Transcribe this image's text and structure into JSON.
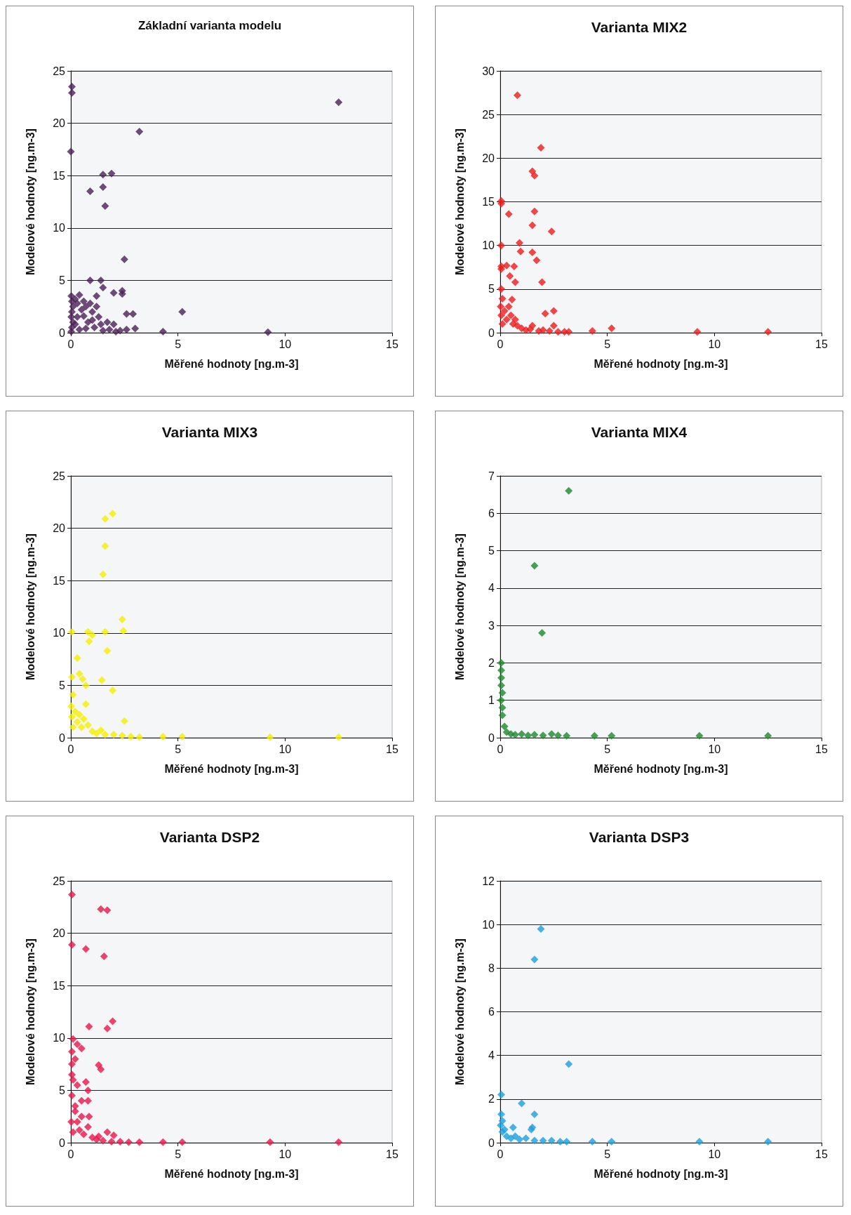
{
  "chart_data": [
    {
      "type": "scatter",
      "title": "Základní varianta modelu",
      "xlabel": "Měřené hodnoty [ng.m-3]",
      "ylabel": "Modelové hodnoty [ng.m-3]",
      "color": "#4b2056",
      "marker": "diamond",
      "grid": "y",
      "xlim": [
        0,
        15
      ],
      "xticks": [
        0,
        5,
        10,
        15
      ],
      "ylim": [
        0,
        25
      ],
      "yticks": [
        0,
        5,
        10,
        15,
        20,
        25
      ],
      "x": [
        0.05,
        0.05,
        12.5,
        0,
        3.2,
        1.5,
        1.9,
        0.9,
        1.5,
        1.6,
        2.5,
        0.9,
        1.4,
        5.2,
        4.3,
        9.2,
        2.4,
        2.4,
        1.5,
        2.0,
        1.2,
        2.6,
        2.9,
        3.0,
        2.6,
        0.02,
        0.05,
        0.1,
        0.05,
        0.02,
        0.1,
        0.05,
        0.02,
        0.2,
        0.3,
        0.4,
        0.5,
        0.3,
        0.2,
        0.4,
        0.6,
        0.7,
        0.6,
        0.8,
        0.7,
        0.9,
        1.0,
        1.0,
        1.1,
        1.2,
        1.3,
        1.4,
        1.5,
        1.7,
        1.8,
        2.0,
        2.1,
        2.3
      ],
      "values": [
        23.5,
        22.9,
        22,
        17.3,
        19.2,
        15.1,
        15.2,
        13.5,
        13.9,
        12.1,
        7.0,
        5.0,
        5.0,
        2.0,
        0.1,
        0.05,
        4.0,
        3.7,
        4.3,
        3.8,
        3.5,
        1.8,
        1.8,
        0.4,
        0.3,
        3.5,
        3.0,
        2.5,
        2.0,
        1.5,
        1.0,
        0.5,
        0.1,
        3.2,
        2.8,
        3.6,
        2.2,
        1.5,
        0.8,
        0.3,
        3.0,
        2.5,
        1.6,
        1.0,
        0.4,
        2.8,
        2.0,
        1.2,
        0.5,
        2.5,
        1.5,
        0.8,
        0.2,
        1.0,
        0.3,
        0.8,
        0.1,
        0.2
      ]
    },
    {
      "type": "scatter",
      "title": "Varianta MIX2",
      "xlabel": "Měřené hodnoty [ng.m-3]",
      "ylabel": "Modelové hodnoty [ng.m-3]",
      "color": "#ee1c1c",
      "marker": "diamond",
      "grid": "y",
      "xlim": [
        0,
        15
      ],
      "xticks": [
        0,
        5,
        10,
        15
      ],
      "ylim": [
        0,
        30
      ],
      "yticks": [
        0,
        5,
        10,
        15,
        20,
        25,
        30
      ],
      "x": [
        0.8,
        1.9,
        1.5,
        1.6,
        0.05,
        0.05,
        0.4,
        1.6,
        1.5,
        2.4,
        0.9,
        0.95,
        1.5,
        1.7,
        0.05,
        0.05,
        0.3,
        0.65,
        0.05,
        0.45,
        0.7,
        1.95,
        0.05,
        0.1,
        0.55,
        2.1,
        2.5,
        4.3,
        5.2,
        9.2,
        12.5,
        1.5,
        2.5,
        0.02,
        0.05,
        0.1,
        0.2,
        0.3,
        0.4,
        0.5,
        0.6,
        0.7,
        0.8,
        1.0,
        1.2,
        1.4,
        1.8,
        2.0,
        2.3,
        2.7,
        3.0,
        3.2
      ],
      "values": [
        27.2,
        21.2,
        18.5,
        18.0,
        15.1,
        14.8,
        13.6,
        13.9,
        12.3,
        11.6,
        10.3,
        9.3,
        9.2,
        8.3,
        10.0,
        7.6,
        7.7,
        7.6,
        7.3,
        6.5,
        5.8,
        5.8,
        5.0,
        3.9,
        3.8,
        2.2,
        2.5,
        0.2,
        0.5,
        0.1,
        0.1,
        0.8,
        0.8,
        3.0,
        2.0,
        1.0,
        2.5,
        1.5,
        3.0,
        2.0,
        1.0,
        1.5,
        0.8,
        0.5,
        0.3,
        0.4,
        0.2,
        0.3,
        0.2,
        0.1,
        0.1,
        0.1
      ]
    },
    {
      "type": "scatter",
      "title": "Varianta MIX3",
      "xlabel": "Měřené hodnoty [ng.m-3]",
      "ylabel": "Modelové hodnoty [ng.m-3]",
      "color": "#f5f000",
      "marker": "diamond",
      "grid": "y",
      "xlim": [
        0,
        15
      ],
      "xticks": [
        0,
        5,
        10,
        15
      ],
      "ylim": [
        0,
        25
      ],
      "yticks": [
        0,
        5,
        10,
        15,
        20,
        25
      ],
      "x": [
        1.6,
        1.95,
        1.6,
        1.5,
        2.4,
        2.45,
        0.05,
        0.8,
        1.0,
        1.6,
        0.85,
        1.7,
        0.3,
        0.4,
        0.05,
        0.55,
        1.45,
        0.7,
        1.95,
        0.1,
        0.7,
        2.5,
        4.3,
        5.2,
        9.3,
        12.5,
        0.02,
        0.05,
        0.1,
        0.2,
        0.3,
        0.4,
        0.5,
        0.6,
        0.8,
        1.0,
        1.2,
        1.4,
        1.6,
        2.0,
        2.4,
        2.8,
        3.2
      ],
      "values": [
        20.9,
        21.4,
        18.3,
        15.6,
        11.3,
        10.2,
        10.1,
        10.1,
        9.8,
        10.1,
        9.2,
        8.3,
        7.6,
        6.1,
        5.8,
        5.6,
        5.5,
        5.0,
        4.5,
        4.1,
        3.2,
        1.6,
        0.1,
        0.1,
        0.05,
        0.05,
        3.0,
        2.0,
        1.0,
        2.5,
        1.5,
        2.2,
        1.0,
        1.8,
        1.2,
        0.6,
        0.4,
        0.7,
        0.3,
        0.3,
        0.2,
        0.1,
        0.05
      ]
    },
    {
      "type": "scatter",
      "title": "Varianta MIX4",
      "xlabel": "Měřené hodnoty [ng.m-3]",
      "ylabel": "Modelové hodnoty [ng.m-3]",
      "color": "#1a8a2a",
      "marker": "diamond",
      "grid": "y",
      "xlim": [
        0,
        15
      ],
      "xticks": [
        0,
        5,
        10,
        15
      ],
      "ylim": [
        0,
        7
      ],
      "yticks": [
        0,
        1,
        2,
        3,
        4,
        5,
        6,
        7
      ],
      "x": [
        3.2,
        1.6,
        1.95,
        0.05,
        0.05,
        0.05,
        0.05,
        0.1,
        0.05,
        0.1,
        0.1,
        0.2,
        0.3,
        0.5,
        0.7,
        1.0,
        1.3,
        1.6,
        2.0,
        2.4,
        2.7,
        3.1,
        4.4,
        5.2,
        9.3,
        12.5
      ],
      "values": [
        6.6,
        4.6,
        2.8,
        2.0,
        1.8,
        1.6,
        1.4,
        1.2,
        1.0,
        0.8,
        0.6,
        0.3,
        0.15,
        0.1,
        0.08,
        0.1,
        0.06,
        0.08,
        0.06,
        0.1,
        0.06,
        0.05,
        0.05,
        0.05,
        0.05,
        0.05
      ]
    },
    {
      "type": "scatter",
      "title": "Varianta DSP2",
      "xlabel": "Měřené hodnoty [ng.m-3]",
      "ylabel": "Modelové hodnoty [ng.m-3]",
      "color": "#e8174a",
      "marker": "diamond",
      "grid": "y",
      "xlim": [
        0,
        15
      ],
      "xticks": [
        0,
        5,
        10,
        15
      ],
      "ylim": [
        0,
        25
      ],
      "yticks": [
        0,
        5,
        10,
        15,
        20,
        25
      ],
      "x": [
        0.05,
        1.4,
        1.7,
        0.05,
        0.7,
        1.55,
        0.85,
        1.95,
        1.7,
        1.3,
        1.4,
        0.1,
        0.3,
        0.5,
        0.05,
        0.2,
        0.05,
        0.1,
        0.05,
        0.7,
        0.3,
        0.8,
        0.05,
        0.5,
        0.8,
        0.2,
        0.85,
        1.7,
        2.0,
        1.3,
        4.3,
        5.2,
        9.3,
        12.5,
        0.02,
        0.1,
        0.2,
        0.3,
        0.4,
        0.5,
        0.6,
        0.8,
        1.0,
        1.2,
        1.5,
        1.9,
        2.3,
        2.7,
        3.2
      ],
      "values": [
        23.7,
        22.3,
        22.2,
        18.9,
        18.5,
        17.8,
        11.1,
        11.6,
        10.9,
        7.4,
        7.0,
        9.9,
        9.4,
        9.0,
        8.7,
        8.0,
        7.5,
        6.0,
        6.5,
        5.8,
        5.5,
        5.0,
        4.5,
        4.0,
        4.0,
        3.0,
        2.5,
        1.0,
        0.7,
        0.6,
        0.05,
        0.05,
        0.05,
        0.05,
        2.0,
        1.0,
        3.5,
        2.0,
        1.2,
        2.5,
        0.8,
        1.5,
        0.5,
        0.3,
        0.2,
        0.1,
        0.1,
        0.05,
        0.05
      ]
    },
    {
      "type": "scatter",
      "title": "Varianta DSP3",
      "xlabel": "Měřené hodnoty [ng.m-3]",
      "ylabel": "Modelové hodnoty [ng.m-3]",
      "color": "#1ca0e0",
      "marker": "diamond",
      "grid": "y",
      "xlim": [
        0,
        15
      ],
      "xticks": [
        0,
        5,
        10,
        15
      ],
      "ylim": [
        0,
        12
      ],
      "yticks": [
        0,
        2,
        4,
        6,
        8,
        10,
        12
      ],
      "x": [
        1.9,
        1.6,
        3.2,
        0.05,
        1.0,
        1.6,
        0.6,
        1.5,
        1.45,
        0.05,
        0.1,
        4.3,
        5.2,
        9.3,
        12.5,
        0.02,
        0.1,
        0.2,
        0.3,
        0.5,
        0.7,
        0.9,
        1.2,
        1.6,
        2.0,
        2.4,
        2.8,
        3.1
      ],
      "values": [
        9.8,
        8.4,
        3.6,
        2.2,
        1.8,
        1.3,
        0.7,
        0.7,
        0.6,
        1.3,
        1.0,
        0.05,
        0.05,
        0.05,
        0.05,
        0.8,
        0.5,
        0.6,
        0.3,
        0.2,
        0.3,
        0.15,
        0.2,
        0.1,
        0.1,
        0.1,
        0.05,
        0.05
      ]
    }
  ]
}
